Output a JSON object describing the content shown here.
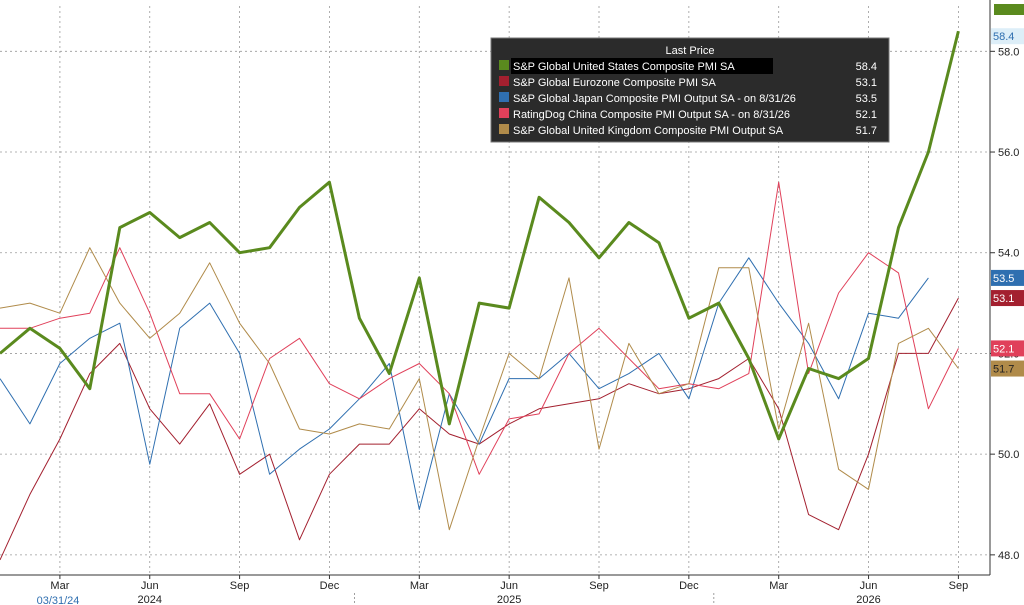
{
  "chart_data": {
    "type": "line",
    "categories": [
      "Jan 2024",
      "Feb 2024",
      "Mar 2024",
      "Apr 2024",
      "May 2024",
      "Jun 2024",
      "Jul 2024",
      "Aug 2024",
      "Sep 2024",
      "Oct 2024",
      "Nov 2024",
      "Dec 2024",
      "Jan 2025",
      "Feb 2025",
      "Mar 2025",
      "Apr 2025",
      "May 2025",
      "Jun 2025",
      "Jul 2025",
      "Aug 2025",
      "Sep 2025",
      "Oct 2025",
      "Nov 2025",
      "Dec 2025",
      "Jan 2026",
      "Feb 2026",
      "Mar 2026",
      "Apr 2026",
      "May 2026",
      "Jun 2026",
      "Jul 2026",
      "Aug 2026",
      "Sep 2026"
    ],
    "series": [
      {
        "name": "S&P Global United States Composite PMI SA",
        "last": "58.4",
        "color": "#5a8a1e",
        "values": [
          52.0,
          52.5,
          52.1,
          51.3,
          54.5,
          54.8,
          54.3,
          54.6,
          54.0,
          54.1,
          54.9,
          55.4,
          52.7,
          51.6,
          53.5,
          50.6,
          53.0,
          52.9,
          55.1,
          54.6,
          53.9,
          54.6,
          54.2,
          52.7,
          53.0,
          51.9,
          50.3,
          51.7,
          51.5,
          51.9,
          54.5,
          56.0,
          58.4
        ]
      },
      {
        "name": "S&P Global Eurozone Composite PMI SA",
        "last": "53.1",
        "color": "#a3202f",
        "values": [
          47.9,
          49.2,
          50.3,
          51.6,
          52.2,
          50.9,
          50.2,
          51.0,
          49.6,
          50.0,
          48.3,
          49.6,
          50.2,
          50.2,
          50.9,
          50.4,
          50.2,
          50.6,
          50.9,
          51.0,
          51.1,
          51.4,
          51.2,
          51.3,
          51.5,
          51.9,
          50.9,
          48.8,
          48.5,
          50.0,
          52.0,
          52.0,
          53.1
        ]
      },
      {
        "name": "S&P Global Japan Composite PMI Output SA -   on 8/31/26",
        "last": "53.5",
        "color": "#2f6fb0",
        "values": [
          51.5,
          50.6,
          51.8,
          52.3,
          52.6,
          49.8,
          52.5,
          53.0,
          52.0,
          49.6,
          50.1,
          50.5,
          51.1,
          51.8,
          48.9,
          51.2,
          50.2,
          51.5,
          51.5,
          52.0,
          51.3,
          51.6,
          52.0,
          51.1,
          53.0,
          53.9,
          53.0,
          52.2,
          51.1,
          52.8,
          52.7,
          53.5,
          null
        ]
      },
      {
        "name": "RatingDog China Composite PMI Output SA -   on 8/31/26",
        "last": "52.1",
        "color": "#e0405a",
        "values": [
          52.5,
          52.5,
          52.7,
          52.8,
          54.1,
          52.8,
          51.2,
          51.2,
          50.3,
          51.9,
          52.3,
          51.4,
          51.1,
          51.5,
          51.8,
          51.2,
          49.6,
          50.7,
          50.8,
          52.0,
          52.5,
          51.9,
          51.3,
          51.4,
          51.3,
          51.6,
          55.4,
          51.6,
          53.2,
          54.0,
          53.6,
          50.9,
          52.1
        ]
      },
      {
        "name": "S&P Global United Kingdom Composite PMI Output SA",
        "last": "51.7",
        "color": "#b08b4a",
        "values": [
          52.9,
          53.0,
          52.8,
          54.1,
          53.0,
          52.3,
          52.8,
          53.8,
          52.6,
          51.8,
          50.5,
          50.4,
          50.6,
          50.5,
          51.5,
          48.5,
          50.3,
          52.0,
          51.5,
          53.5,
          50.1,
          52.2,
          51.2,
          51.4,
          53.7,
          53.7,
          50.5,
          52.6,
          49.7,
          49.3,
          52.2,
          52.5,
          51.7
        ]
      }
    ],
    "ylim": [
      47.6,
      58.9
    ],
    "y_ticks": [
      "48.0",
      "50.0",
      "52.0",
      "54.0",
      "56.0",
      "58.0"
    ],
    "month_ticks": [
      {
        "label": "Mar",
        "index": 2
      },
      {
        "label": "Jun",
        "index": 5
      },
      {
        "label": "Sep",
        "index": 8
      },
      {
        "label": "Dec",
        "index": 11
      },
      {
        "label": "Mar",
        "index": 14
      },
      {
        "label": "Jun",
        "index": 17
      },
      {
        "label": "Sep",
        "index": 20
      },
      {
        "label": "Dec",
        "index": 23
      },
      {
        "label": "Mar",
        "index": 26
      },
      {
        "label": "Jun",
        "index": 29
      },
      {
        "label": "Sep",
        "index": 32
      }
    ],
    "year_ticks": [
      {
        "label": "2024",
        "index": 5
      },
      {
        "label": "2025",
        "index": 17
      },
      {
        "label": "2026",
        "index": 29
      }
    ],
    "start_label": "03/31/24",
    "legend": {
      "title": "Last Price",
      "placement": "top"
    },
    "grid": true
  }
}
